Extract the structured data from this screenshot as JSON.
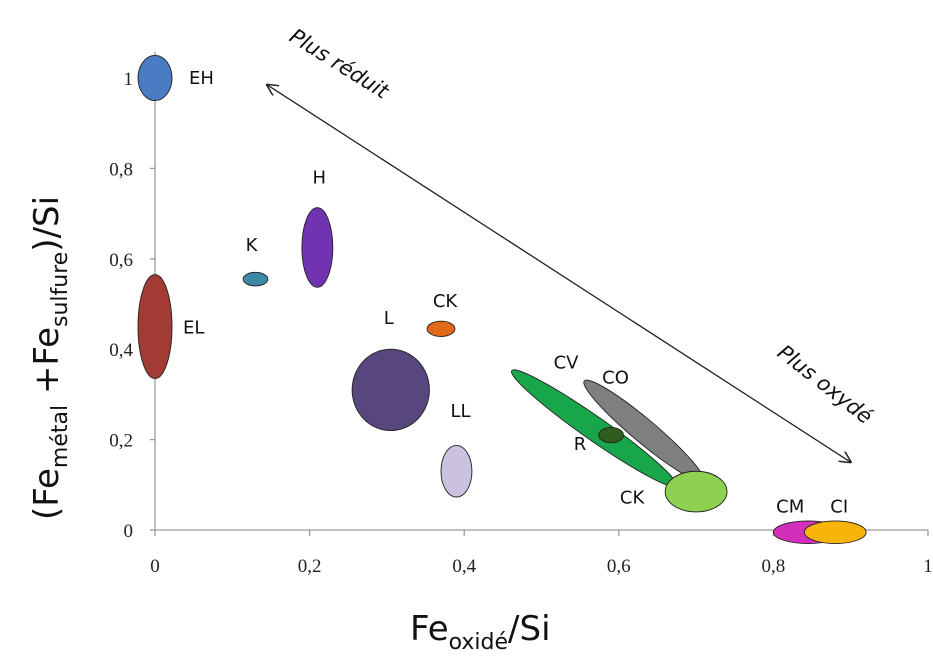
{
  "chart_data": {
    "type": "scatter",
    "x_title": {
      "main": "Fe",
      "sub": "oxidé",
      "tail": "/Si"
    },
    "y_title": {
      "open": "(Fe",
      "sub1": "métal",
      "mid": " +Fe",
      "sub2": "sulfure",
      "close": ")/Si"
    },
    "xlim": [
      0,
      1
    ],
    "ylim": [
      0,
      1
    ],
    "x_ticks": [
      0,
      0.2,
      0.4,
      0.6,
      0.8,
      1
    ],
    "x_tick_labels": [
      "0",
      "0,2",
      "0,4",
      "0,6",
      "0,8",
      "1"
    ],
    "y_ticks": [
      0,
      0.2,
      0.4,
      0.6,
      0.8,
      1
    ],
    "y_tick_labels": [
      "0",
      "0,2",
      "0,4",
      "0,6",
      "0,8",
      "1"
    ],
    "grid": false,
    "groups": [
      {
        "label": "EH",
        "x": 0.0,
        "y": 1.0,
        "rx": 0.022,
        "ry": 0.05,
        "angle": 0,
        "color": "#4a7cc4"
      },
      {
        "label": "EL",
        "x": 0.0,
        "y": 0.45,
        "rx": 0.022,
        "ry": 0.115,
        "angle": 0,
        "color": "#a33b35"
      },
      {
        "label": "K",
        "x": 0.13,
        "y": 0.555,
        "rx": 0.016,
        "ry": 0.015,
        "angle": 0,
        "color": "#3a89a5"
      },
      {
        "label": "H",
        "x": 0.21,
        "y": 0.625,
        "rx": 0.02,
        "ry": 0.088,
        "angle": 0,
        "color": "#7133b2"
      },
      {
        "label": "CK",
        "x": 0.37,
        "y": 0.445,
        "rx": 0.018,
        "ry": 0.017,
        "angle": 0,
        "color": "#e16a18"
      },
      {
        "label": "L",
        "x": 0.305,
        "y": 0.31,
        "rx": 0.05,
        "ry": 0.09,
        "angle": 0,
        "color": "#58477e"
      },
      {
        "label": "LL",
        "x": 0.39,
        "y": 0.13,
        "rx": 0.02,
        "ry": 0.057,
        "angle": 0,
        "color": "#cbc2e0"
      },
      {
        "label": "CV",
        "x": 0.568,
        "y": 0.225,
        "rx": 0.13,
        "ry": 0.026,
        "angle": 35,
        "color": "#18a64a"
      },
      {
        "label": "CO",
        "x": 0.632,
        "y": 0.22,
        "rx": 0.1,
        "ry": 0.026,
        "angle": 40,
        "color": "#7f7f7f"
      },
      {
        "label": "R",
        "x": 0.59,
        "y": 0.21,
        "rx": 0.016,
        "ry": 0.017,
        "angle": 0,
        "color": "#2f5d1e"
      },
      {
        "label": "CK",
        "x": 0.7,
        "y": 0.085,
        "rx": 0.04,
        "ry": 0.045,
        "angle": 0,
        "color": "#8ed150"
      },
      {
        "label": "CM",
        "x": 0.845,
        "y": -0.005,
        "rx": 0.045,
        "ry": 0.025,
        "angle": 0,
        "color": "#d22fbb"
      },
      {
        "label": "CI",
        "x": 0.88,
        "y": -0.005,
        "rx": 0.04,
        "ry": 0.025,
        "angle": 0,
        "color": "#f9b40a"
      }
    ],
    "annotations": [
      {
        "text": "Plus réduit"
      },
      {
        "text": "Plus oxydé"
      }
    ],
    "arrow": {
      "from": [
        0.9,
        0.15
      ],
      "to": [
        0.145,
        0.985
      ]
    }
  }
}
